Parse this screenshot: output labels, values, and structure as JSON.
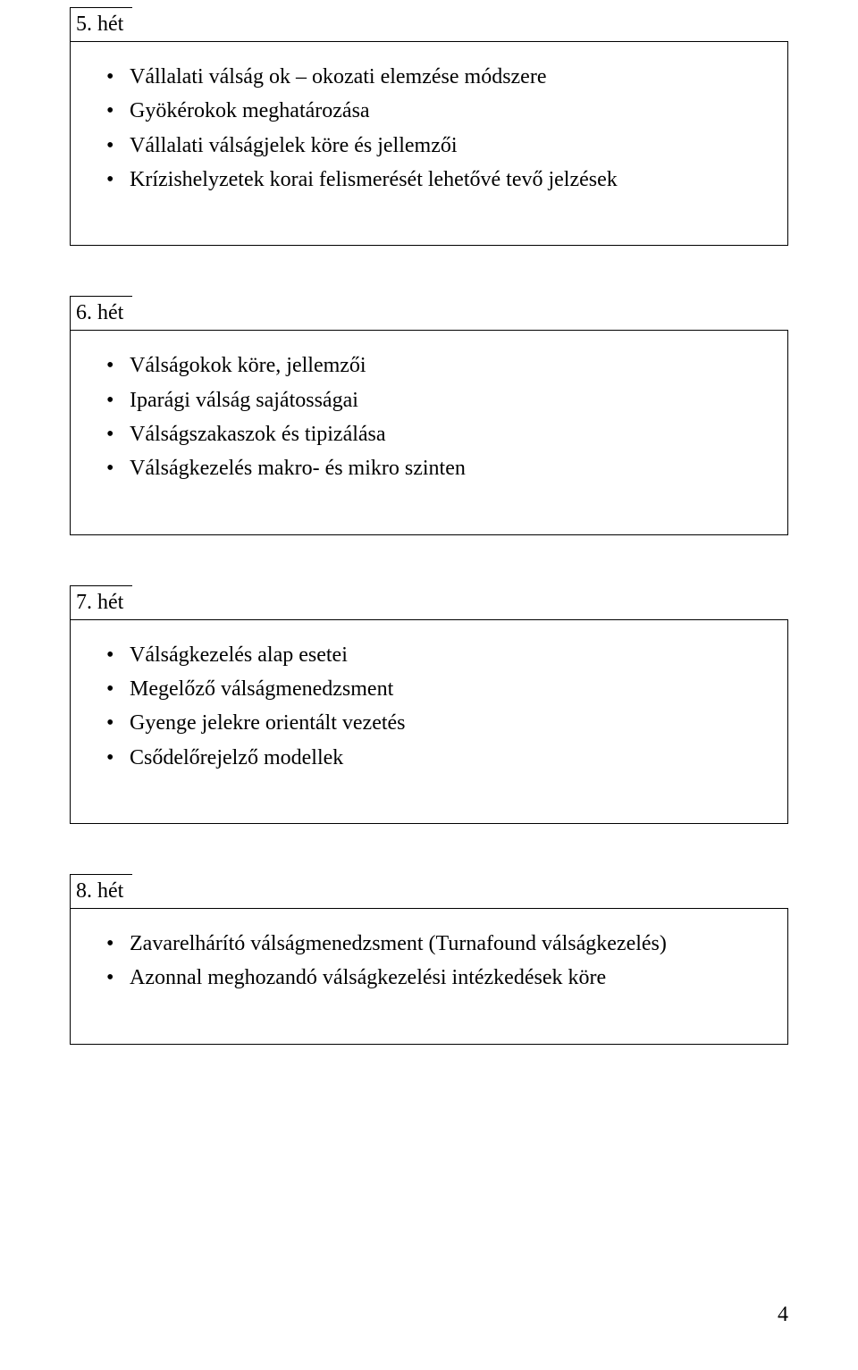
{
  "page_number": "4",
  "sections": [
    {
      "week": "5. hét",
      "items": [
        "Vállalati válság ok – okozati elemzése módszere",
        "Gyökérokok meghatározása",
        "Vállalati válságjelek köre és jellemzői",
        "Krízishelyzetek korai felismerését lehetővé tevő jelzések"
      ]
    },
    {
      "week": "6. hét",
      "items": [
        "Válságokok köre, jellemzői",
        "Iparági válság sajátosságai",
        "Válságszakaszok és tipizálása",
        "Válságkezelés makro- és mikro szinten"
      ]
    },
    {
      "week": "7. hét",
      "items": [
        "Válságkezelés alap esetei",
        "Megelőző válságmenedzsment",
        "Gyenge jelekre orientált vezetés",
        "Csődelőrejelző modellek"
      ]
    },
    {
      "week": "8. hét",
      "items": [
        "Zavarelhárító válságmenedzsment (Turnafound válságkezelés)",
        "Azonnal meghozandó válságkezelési intézkedések köre"
      ]
    }
  ]
}
